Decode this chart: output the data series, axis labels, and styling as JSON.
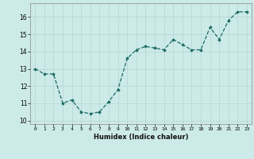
{
  "x": [
    0,
    1,
    2,
    3,
    4,
    5,
    6,
    7,
    8,
    9,
    10,
    11,
    12,
    13,
    14,
    15,
    16,
    17,
    18,
    19,
    20,
    21,
    22,
    23
  ],
  "y": [
    13.0,
    12.7,
    12.7,
    11.0,
    11.2,
    10.5,
    10.4,
    10.5,
    11.1,
    11.8,
    13.6,
    14.1,
    14.3,
    14.2,
    14.1,
    14.7,
    14.4,
    14.1,
    14.1,
    15.4,
    14.7,
    15.8,
    16.3,
    16.3
  ],
  "xlabel": "Humidex (Indice chaleur)",
  "ylim": [
    9.8,
    16.8
  ],
  "xlim": [
    -0.5,
    23.5
  ],
  "bg_color": "#cceae8",
  "line_color": "#1a6b64",
  "grid_color": "#b8d8d5",
  "axes_bg": "#cceae8",
  "yticks": [
    10,
    11,
    12,
    13,
    14,
    15,
    16
  ],
  "xticks": [
    0,
    1,
    2,
    3,
    4,
    5,
    6,
    7,
    8,
    9,
    10,
    11,
    12,
    13,
    14,
    15,
    16,
    17,
    18,
    19,
    20,
    21,
    22,
    23
  ]
}
